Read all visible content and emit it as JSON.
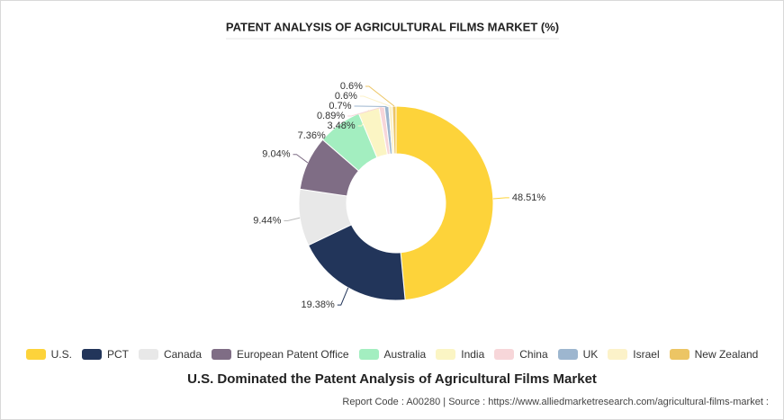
{
  "chart_data": {
    "type": "donut",
    "title": "PATENT ANALYSIS OF AGRICULTURAL FILMS MARKET (%)",
    "categories": [
      "U.S.",
      "PCT",
      "Canada",
      "European Patent Office",
      "Australia",
      "India",
      "China",
      "UK",
      "Israel",
      "New Zealand"
    ],
    "values": [
      48.51,
      19.38,
      9.44,
      9.04,
      7.36,
      3.48,
      0.89,
      0.7,
      0.6,
      0.6
    ],
    "value_labels": [
      "48.51%",
      "19.38%",
      "9.44%",
      "9.04%",
      "7.36%",
      "3.48%",
      "0.89%",
      "0.7%",
      "0.6%",
      "0.6%"
    ],
    "colors": [
      "#fdd33a",
      "#22355a",
      "#e8e8e8",
      "#7f6d85",
      "#a3eec0",
      "#fbf5c4",
      "#f7d6d9",
      "#9db6cf",
      "#fcf2c9",
      "#ecc564"
    ]
  },
  "heading": "U.S. Dominated the Patent Analysis of Agricultural Films Market",
  "source": "Report Code : A00280  |  Source : https://www.alliedmarketresearch.com/agricultural-films-market :"
}
